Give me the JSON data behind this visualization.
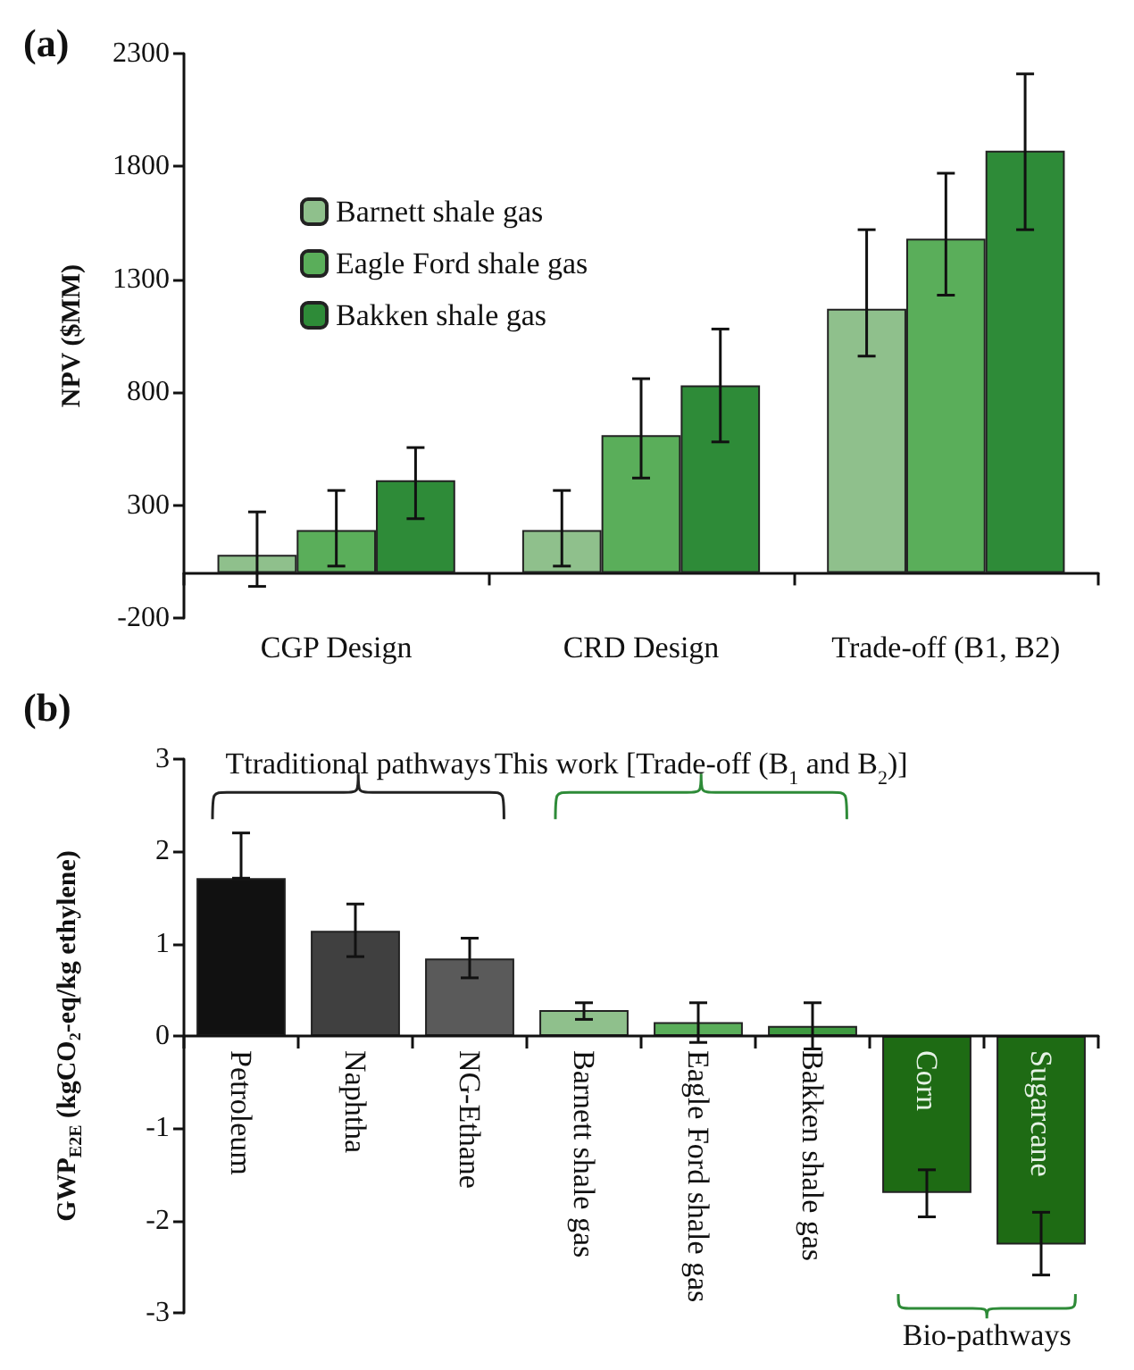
{
  "chart_data": [
    {
      "type": "bar",
      "title": "(a)",
      "ylabel": "NPV ($MM)",
      "categories": [
        "CGP Design",
        "CRD Design",
        "Trade-off (B1, B2)"
      ],
      "series": [
        {
          "name": "Barnett shale gas",
          "color": "#8fc08c",
          "values": [
            80,
            190,
            1170
          ],
          "errors": [
            [
              -60,
              270
            ],
            [
              30,
              365
            ],
            [
              960,
              1520
            ]
          ]
        },
        {
          "name": "Eagle Ford shale gas",
          "color": "#5aae5a",
          "values": [
            190,
            610,
            1480
          ],
          "errors": [
            [
              30,
              365
            ],
            [
              420,
              860
            ],
            [
              1230,
              1770
            ]
          ]
        },
        {
          "name": "Bakken shale gas",
          "color": "#2e8b38",
          "values": [
            410,
            830,
            1870
          ],
          "errors": [
            [
              240,
              555
            ],
            [
              580,
              1080
            ],
            [
              1520,
              2210
            ]
          ]
        }
      ],
      "ylim": [
        -200,
        2300
      ],
      "yticks": [
        -200,
        300,
        800,
        1300,
        1800,
        2300
      ],
      "grid": false,
      "legend": "top left"
    },
    {
      "type": "bar",
      "title": "(b)",
      "ylabel": "GWP$_{E2E}$ (kgCO₂-eq/kg ethylene)",
      "categories": [
        "Petroleum",
        "Naphtha",
        "NG-Ethane",
        "Barnett shale gas",
        "Eagle Ford shale gas",
        "Bakken shale gas",
        "Corn",
        "Sugarcane"
      ],
      "values": [
        1.71,
        1.14,
        0.84,
        0.28,
        0.15,
        0.11,
        -1.7,
        -2.26
      ],
      "colors": [
        "#111111",
        "#404040",
        "#5a5a5a",
        "#8fc08c",
        "#5aae5a",
        "#3e9a40",
        "#1e6b14",
        "#1e6b14"
      ],
      "errors": [
        [
          1.71,
          2.2
        ],
        [
          0.86,
          1.43
        ],
        [
          0.63,
          1.06
        ],
        [
          0.18,
          0.36
        ],
        [
          -0.07,
          0.36
        ],
        [
          -0.14,
          0.36
        ],
        [
          -1.96,
          -1.45
        ],
        [
          -2.59,
          -1.91
        ]
      ],
      "annotations": [
        "Ttraditional pathways",
        "This work [Trade-off (B$_{1}$ and B$_{2}$)]",
        "Bio-pathways"
      ],
      "ylim": [
        -3,
        3
      ],
      "yticks": [
        -3,
        -2,
        -1,
        0,
        1,
        2,
        3
      ],
      "grid": false,
      "legend": false
    }
  ]
}
